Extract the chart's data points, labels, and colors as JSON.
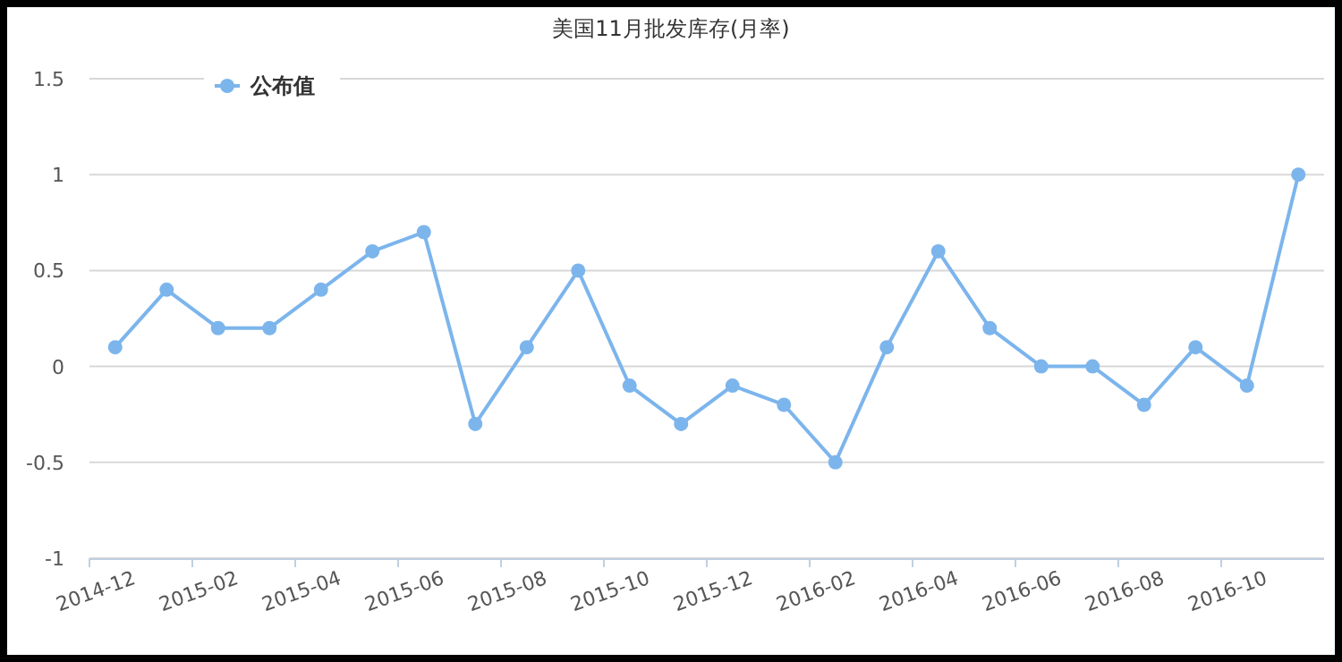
{
  "chart_data": {
    "type": "line",
    "title": "美国11月批发库存(月率)",
    "categories": [
      "2014-12",
      null,
      "2015-02",
      null,
      "2015-04",
      null,
      "2015-06",
      null,
      "2015-08",
      null,
      "2015-10",
      null,
      "2015-12",
      null,
      "2016-02",
      null,
      "2016-04",
      null,
      "2016-06",
      null,
      "2016-08",
      null,
      "2016-10",
      null
    ],
    "series": [
      {
        "name": "公布值",
        "color": "#7cb5ec",
        "values": [
          0.1,
          0.4,
          0.2,
          0.2,
          0.4,
          0.6,
          0.7,
          -0.3,
          0.1,
          0.5,
          -0.1,
          -0.3,
          -0.1,
          -0.2,
          -0.5,
          0.1,
          0.6,
          0.2,
          0,
          0,
          -0.2,
          0.1,
          -0.1,
          1.0
        ]
      }
    ],
    "ylim": [
      -1,
      1.5
    ],
    "yticks": [
      -1,
      -0.5,
      0,
      0.5,
      1,
      1.5
    ],
    "grid": "y",
    "legend": "top left",
    "marker": "circle",
    "line_style": "solid"
  }
}
